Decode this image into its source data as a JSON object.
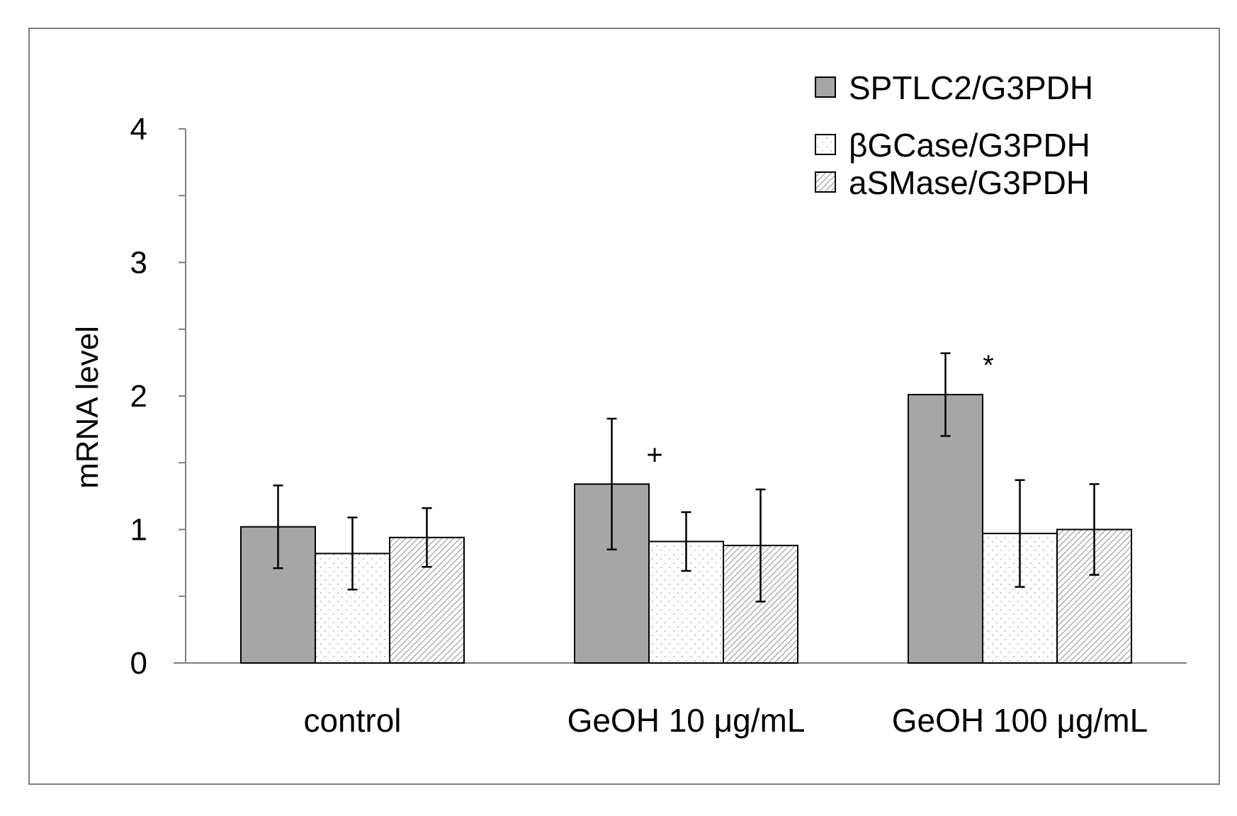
{
  "chart_data": {
    "type": "bar",
    "title": "",
    "xlabel": "",
    "ylabel": "mRNA level",
    "ylim": [
      0,
      4
    ],
    "yticks": [
      "0",
      "1",
      "2",
      "3",
      "4"
    ],
    "categories": [
      "control",
      "GeOH 10 μg/mL",
      "GeOH 100 μg/mL"
    ],
    "series": [
      {
        "name": "SPTLC2/G3PDH",
        "pattern": "solid-gray",
        "values": [
          1.02,
          1.34,
          2.01
        ],
        "errors": [
          0.31,
          0.49,
          0.31
        ]
      },
      {
        "name": "βGCase/G3PDH",
        "pattern": "dots",
        "values": [
          0.82,
          0.91,
          0.97
        ],
        "errors": [
          0.27,
          0.22,
          0.4
        ]
      },
      {
        "name": "aSMase/G3PDH",
        "pattern": "hatch",
        "values": [
          0.94,
          0.88,
          1.0
        ],
        "errors": [
          0.22,
          0.42,
          0.34
        ]
      }
    ],
    "annotations": [
      {
        "text": "+",
        "category": 1,
        "series": 0
      },
      {
        "text": "*",
        "category": 2,
        "series": 0
      }
    ],
    "legend_position": "top-right",
    "colors": {
      "solid": "#a6a6a6",
      "stroke": "#000000",
      "axis": "#7f7f7f",
      "frame": "#7f7f7f",
      "pattern": "#9a9a9a"
    }
  }
}
